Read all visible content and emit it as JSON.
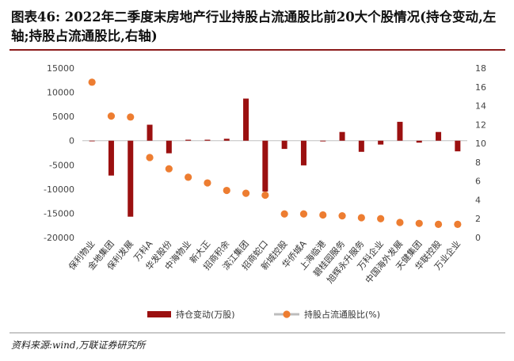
{
  "figure": {
    "title": "图表46:  2022年二季度末房地产行业持股占流通股比前20大个股情况(持仓变动,左轴;持股占流通股比,右轴)",
    "source": "资料来源:wind,万联证券研究所"
  },
  "colors": {
    "bar": "#9b1010",
    "dot": "#ed7d31",
    "accent_rule": "#8b1a1a"
  },
  "chart_data": {
    "type": "bar",
    "categories": [
      "保利物业",
      "金地集团",
      "保利发展",
      "万科A",
      "华发股份",
      "中海物业",
      "新大正",
      "招商积余",
      "滨江集团",
      "招商蛇口",
      "新城控股",
      "华侨城A",
      "上海临港",
      "碧桂园服务",
      "旭辉永升服务",
      "万科企业",
      "中国海外发展",
      "天健集团",
      "华联控股",
      "万业企业"
    ],
    "series": [
      {
        "name": "持仓变动(万股)",
        "type": "bar",
        "axis": "left",
        "values": [
          -50,
          -7200,
          -15700,
          3300,
          -2600,
          200,
          200,
          400,
          8700,
          -10500,
          -1700,
          -5100,
          -150,
          1800,
          -2300,
          -800,
          3900,
          -400,
          1800,
          -2200
        ]
      },
      {
        "name": "持股占流通股比(%)",
        "type": "scatter",
        "axis": "right",
        "values": [
          16.5,
          12.9,
          12.8,
          8.5,
          7.3,
          6.4,
          5.8,
          5.0,
          4.7,
          4.5,
          2.5,
          2.5,
          2.4,
          2.3,
          2.1,
          2.0,
          1.6,
          1.5,
          1.4,
          1.4
        ]
      }
    ],
    "left_axis": {
      "ylim": [
        -20000,
        15000
      ],
      "ticks": [
        "15000",
        "10000",
        "5000",
        "0",
        "-5000",
        "-10000",
        "-15000",
        "-20000"
      ]
    },
    "right_axis": {
      "ylim": [
        0,
        18
      ],
      "ticks": [
        "18",
        "16",
        "14",
        "12",
        "10",
        "8",
        "6",
        "4",
        "2",
        "0"
      ]
    },
    "legend": [
      "持仓变动(万股)",
      "持股占流通股比(%)"
    ],
    "legend_position": "bottom",
    "grid": false
  }
}
